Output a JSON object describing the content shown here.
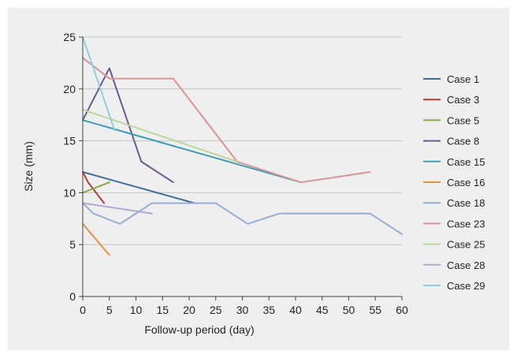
{
  "chart_data": {
    "type": "line",
    "title": "",
    "xlabel": "Follow-up period  (day)",
    "ylabel": "Size (mm)",
    "xlim": [
      0,
      60
    ],
    "ylim": [
      0,
      25
    ],
    "xticks": [
      0,
      5,
      10,
      15,
      20,
      25,
      30,
      35,
      40,
      45,
      50,
      55,
      60
    ],
    "yticks": [
      0,
      5,
      10,
      15,
      20,
      25
    ],
    "grid": "horizontal",
    "legend_position": "right",
    "series": [
      {
        "name": "Case 1",
        "color": "#3f6c9e",
        "points": [
          [
            0,
            12
          ],
          [
            21,
            9
          ]
        ]
      },
      {
        "name": "Case 3",
        "color": "#b23c36",
        "points": [
          [
            0,
            12
          ],
          [
            1,
            11
          ],
          [
            4,
            9
          ]
        ]
      },
      {
        "name": "Case 5",
        "color": "#8aa64a",
        "points": [
          [
            0,
            10
          ],
          [
            5,
            11
          ]
        ]
      },
      {
        "name": "Case 8",
        "color": "#6b5a92",
        "points": [
          [
            0,
            17
          ],
          [
            5,
            22
          ],
          [
            11,
            13
          ],
          [
            17,
            11
          ]
        ]
      },
      {
        "name": "Case 15",
        "color": "#3b9db7",
        "points": [
          [
            0,
            17
          ],
          [
            41,
            11
          ]
        ]
      },
      {
        "name": "Case 16",
        "color": "#e4913f",
        "points": [
          [
            0,
            7
          ],
          [
            5,
            4
          ]
        ]
      },
      {
        "name": "Case 18",
        "color": "#96afd5",
        "points": [
          [
            0,
            9
          ],
          [
            2,
            8
          ],
          [
            7,
            7
          ],
          [
            13,
            9
          ],
          [
            25,
            9
          ],
          [
            31,
            7
          ],
          [
            37,
            8
          ],
          [
            54,
            8
          ],
          [
            60,
            6
          ]
        ]
      },
      {
        "name": "Case 23",
        "color": "#d99595",
        "points": [
          [
            0,
            23
          ],
          [
            5,
            21
          ],
          [
            17,
            21
          ],
          [
            29,
            13
          ],
          [
            41,
            11
          ],
          [
            54,
            12
          ]
        ]
      },
      {
        "name": "Case 25",
        "color": "#bcd79a",
        "points": [
          [
            0,
            18
          ],
          [
            29,
            13
          ]
        ]
      },
      {
        "name": "Case 28",
        "color": "#b3a7cc",
        "points": [
          [
            0,
            9
          ],
          [
            13,
            8
          ]
        ]
      },
      {
        "name": "Case 29",
        "color": "#8fd0e0",
        "points": [
          [
            0,
            25
          ],
          [
            6,
            16
          ]
        ]
      }
    ]
  }
}
